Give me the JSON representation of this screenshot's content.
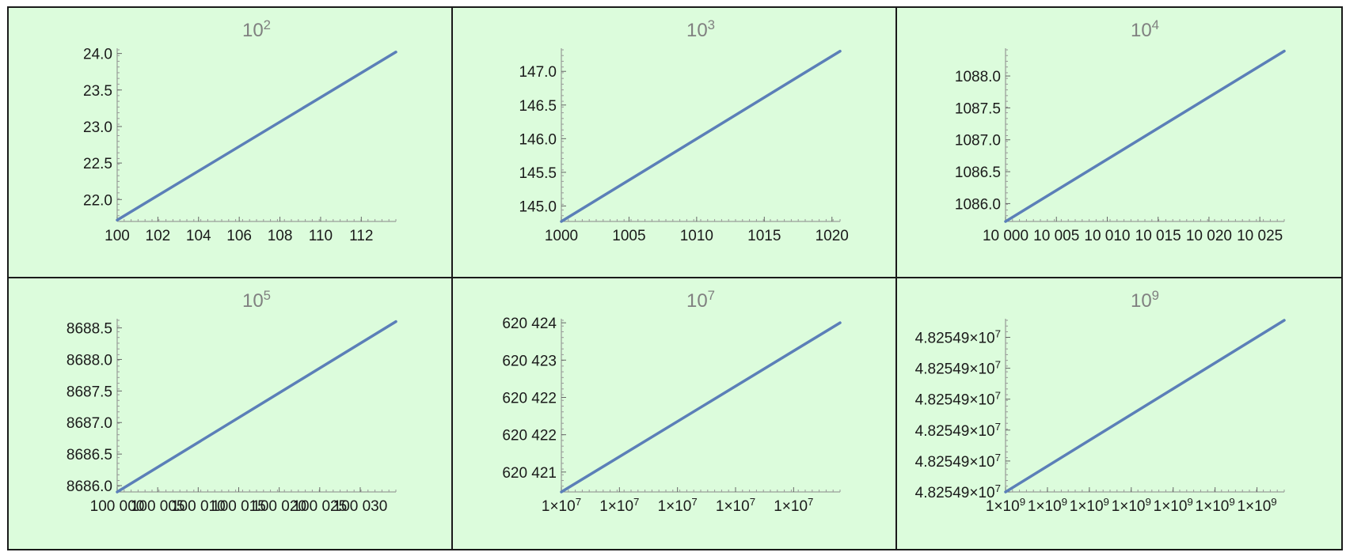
{
  "chart_data": [
    {
      "type": "line",
      "title_base": "10",
      "title_exp": "2",
      "xlim": [
        100,
        113.7
      ],
      "ylim": [
        21.7,
        24.05
      ],
      "x_ticks": [
        {
          "v": 100,
          "label": "100"
        },
        {
          "v": 102,
          "label": "102"
        },
        {
          "v": 104,
          "label": "104"
        },
        {
          "v": 106,
          "label": "106"
        },
        {
          "v": 108,
          "label": "108"
        },
        {
          "v": 110,
          "label": "110"
        },
        {
          "v": 112,
          "label": "112"
        }
      ],
      "y_ticks": [
        {
          "v": 22.0,
          "label": "22.0"
        },
        {
          "v": 22.5,
          "label": "22.5"
        },
        {
          "v": 23.0,
          "label": "23.0"
        },
        {
          "v": 23.5,
          "label": "23.5"
        },
        {
          "v": 24.0,
          "label": "24.0"
        }
      ],
      "series": [
        {
          "x": [
            100,
            113.7
          ],
          "y": [
            21.72,
            24.02
          ]
        }
      ],
      "color": "#5b7fb8"
    },
    {
      "type": "line",
      "title_base": "10",
      "title_exp": "3",
      "xlim": [
        1000,
        1020.6
      ],
      "ylim": [
        144.77,
        147.32
      ],
      "x_ticks": [
        {
          "v": 1000,
          "label": "1000"
        },
        {
          "v": 1005,
          "label": "1005"
        },
        {
          "v": 1010,
          "label": "1010"
        },
        {
          "v": 1015,
          "label": "1015"
        },
        {
          "v": 1020,
          "label": "1020"
        }
      ],
      "y_ticks": [
        {
          "v": 145.0,
          "label": "145.0"
        },
        {
          "v": 145.5,
          "label": "145.5"
        },
        {
          "v": 146.0,
          "label": "146.0"
        },
        {
          "v": 146.5,
          "label": "146.5"
        },
        {
          "v": 147.0,
          "label": "147.0"
        }
      ],
      "series": [
        {
          "x": [
            1000,
            1020.6
          ],
          "y": [
            144.77,
            147.3
          ]
        }
      ],
      "color": "#5b7fb8"
    },
    {
      "type": "line",
      "title_base": "10",
      "title_exp": "4",
      "xlim": [
        10000,
        10027.4
      ],
      "ylim": [
        1085.72,
        1088.41
      ],
      "x_ticks": [
        {
          "v": 10000,
          "label": "10 000"
        },
        {
          "v": 10005,
          "label": "10 005"
        },
        {
          "v": 10010,
          "label": "10 010"
        },
        {
          "v": 10015,
          "label": "10 015"
        },
        {
          "v": 10020,
          "label": "10 020"
        },
        {
          "v": 10025,
          "label": "10 025"
        }
      ],
      "y_ticks": [
        {
          "v": 1086.0,
          "label": "1086.0"
        },
        {
          "v": 1086.5,
          "label": "1086.5"
        },
        {
          "v": 1087.0,
          "label": "1087.0"
        },
        {
          "v": 1087.5,
          "label": "1087.5"
        },
        {
          "v": 1088.0,
          "label": "1088.0"
        }
      ],
      "series": [
        {
          "x": [
            10000,
            10027.4
          ],
          "y": [
            1085.72,
            1088.39
          ]
        }
      ],
      "color": "#5b7fb8"
    },
    {
      "type": "line",
      "title_base": "10",
      "title_exp": "5",
      "xlim": [
        100000,
        100034.4
      ],
      "ylim": [
        8685.9,
        8688.62
      ],
      "x_ticks": [
        {
          "v": 100000,
          "label": "100 000"
        },
        {
          "v": 100005,
          "label": "100 005"
        },
        {
          "v": 100010,
          "label": "100 010"
        },
        {
          "v": 100015,
          "label": "100 015"
        },
        {
          "v": 100020,
          "label": "100 020"
        },
        {
          "v": 100025,
          "label": "100 025"
        },
        {
          "v": 100030,
          "label": "100 030"
        }
      ],
      "y_ticks": [
        {
          "v": 8686.0,
          "label": "8686.0"
        },
        {
          "v": 8686.5,
          "label": "8686.5"
        },
        {
          "v": 8687.0,
          "label": "8687.0"
        },
        {
          "v": 8687.5,
          "label": "8687.5"
        },
        {
          "v": 8688.0,
          "label": "8688.0"
        },
        {
          "v": 8688.5,
          "label": "8688.5"
        }
      ],
      "series": [
        {
          "x": [
            100000,
            100034.4
          ],
          "y": [
            8685.9,
            8688.6
          ]
        }
      ],
      "color": "#5b7fb8"
    },
    {
      "type": "line",
      "title_base": "10",
      "title_exp": "7",
      "xlim": [
        0,
        4.8
      ],
      "ylim": [
        620420.6,
        620424.05
      ],
      "x_ticks": [
        {
          "v": 0,
          "label": "1×10",
          "exp": "7"
        },
        {
          "v": 1,
          "label": "1×10",
          "exp": "7"
        },
        {
          "v": 2,
          "label": "1×10",
          "exp": "7"
        },
        {
          "v": 3,
          "label": "1×10",
          "exp": "7"
        },
        {
          "v": 4,
          "label": "1×10",
          "exp": "7"
        }
      ],
      "y_ticks": [
        {
          "v": 620421.0,
          "label": "620 421"
        },
        {
          "v": 620421.75,
          "label": "620 422"
        },
        {
          "v": 620422.5,
          "label": "620 422"
        },
        {
          "v": 620423.25,
          "label": "620 423"
        },
        {
          "v": 620424.0,
          "label": "620 424"
        }
      ],
      "series": [
        {
          "x": [
            0,
            4.8
          ],
          "y": [
            620420.6,
            620424.0
          ]
        }
      ],
      "color": "#5b7fb8"
    },
    {
      "type": "line",
      "title_base": "10",
      "title_exp": "9",
      "xlim": [
        0,
        6.65
      ],
      "ylim": [
        0,
        5.55
      ],
      "x_ticks": [
        {
          "v": 0,
          "label": "1×10",
          "exp": "9"
        },
        {
          "v": 1,
          "label": "1×10",
          "exp": "9"
        },
        {
          "v": 2,
          "label": "1×10",
          "exp": "9"
        },
        {
          "v": 3,
          "label": "1×10",
          "exp": "9"
        },
        {
          "v": 4,
          "label": "1×10",
          "exp": "9"
        },
        {
          "v": 5,
          "label": "1×10",
          "exp": "9"
        },
        {
          "v": 6,
          "label": "1×10",
          "exp": "9"
        }
      ],
      "y_ticks": [
        {
          "v": 0,
          "label": "4.82549×10",
          "exp": "7"
        },
        {
          "v": 1,
          "label": "4.82549×10",
          "exp": "7"
        },
        {
          "v": 2,
          "label": "4.82549×10",
          "exp": "7"
        },
        {
          "v": 3,
          "label": "4.82549×10",
          "exp": "7"
        },
        {
          "v": 4,
          "label": "4.82549×10",
          "exp": "7"
        },
        {
          "v": 5,
          "label": "4.82549×10",
          "exp": "7"
        }
      ],
      "series": [
        {
          "x": [
            0,
            6.65
          ],
          "y": [
            0,
            5.55
          ]
        }
      ],
      "color": "#5b7fb8"
    }
  ]
}
